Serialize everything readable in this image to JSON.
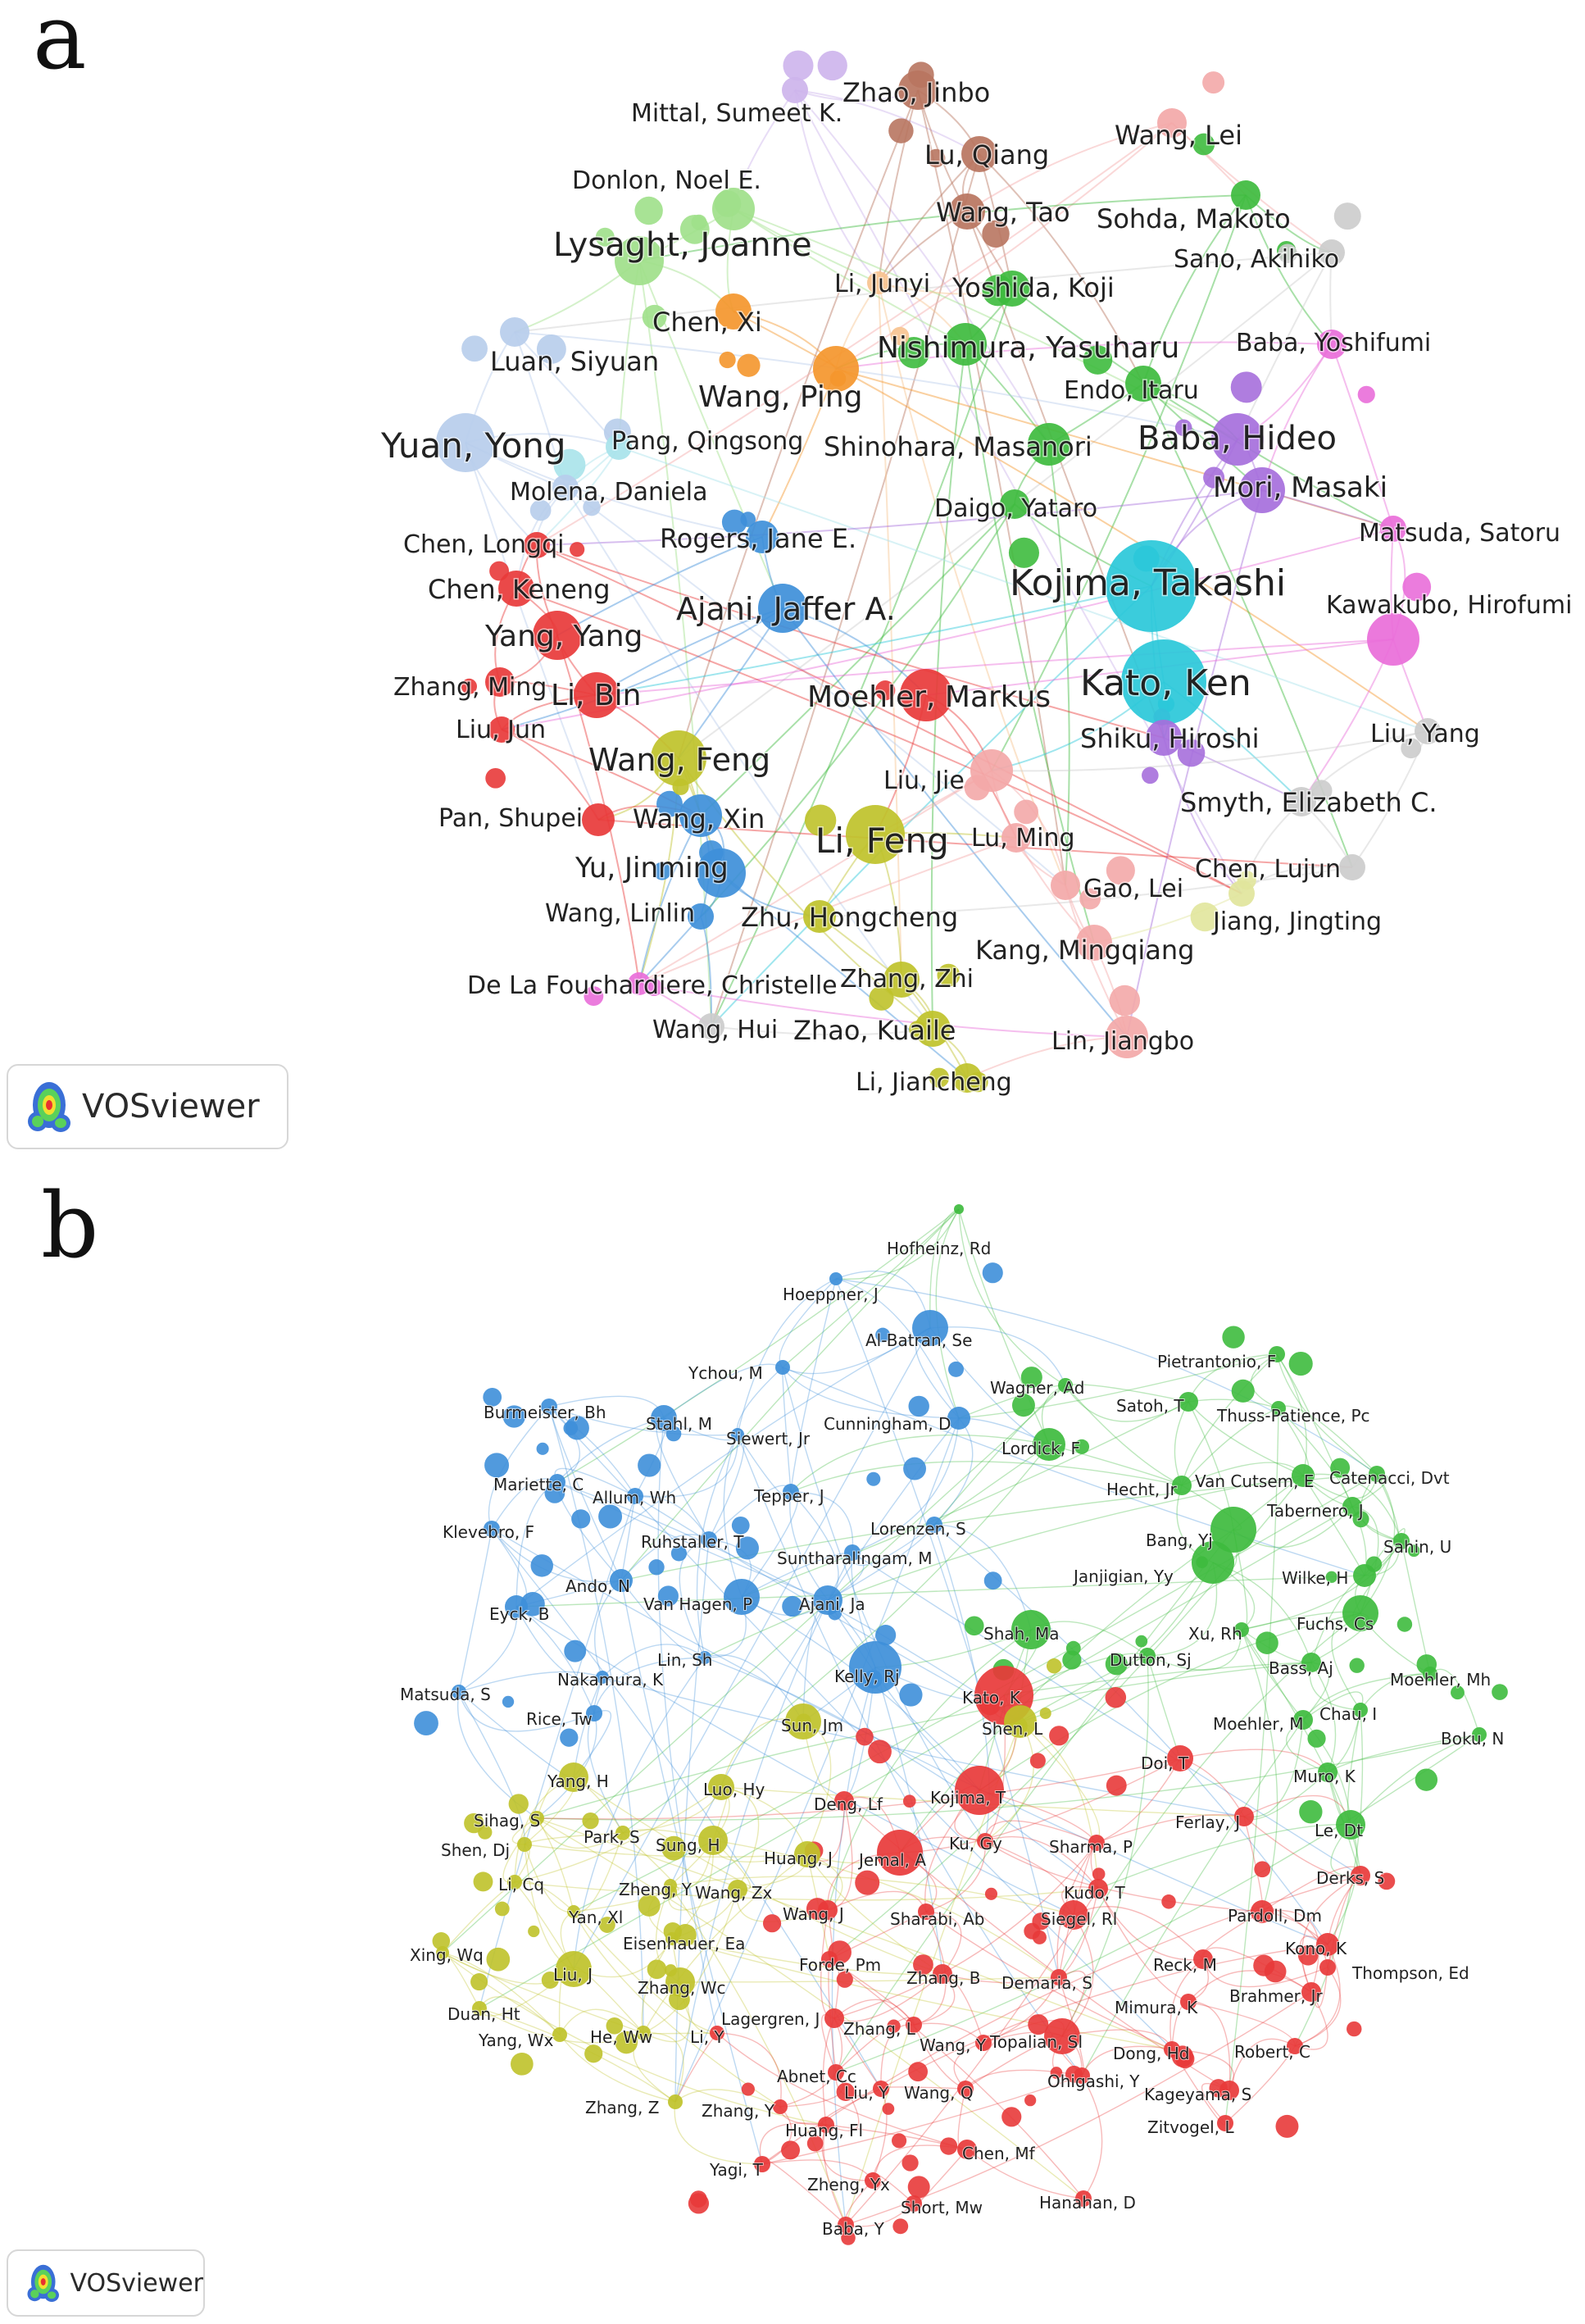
{
  "panel_a": {
    "letter": "a",
    "logo": "VOSviewer",
    "clusters": {
      "red": "#e83a3a",
      "green": "#3ebb3e",
      "blue": "#3e8fd9",
      "yellow": "#bfc22a",
      "purple": "#a66fdc",
      "cyan": "#2ac8d9",
      "orange": "#f4962c",
      "brown": "#b87560",
      "pink": "#e96ed9",
      "lightgreen": "#9fe08a",
      "lightblue": "#b7cdeb",
      "salmon": "#f3a8a8",
      "lavender": "#cdb4ec",
      "grey": "#cccccc",
      "palecyan": "#a8e3ea",
      "lightorange": "#f7c38f",
      "paleyellow": "#e1e59c"
    },
    "labels": [
      "Mittal, Sumeet K.",
      "Zhao, Jinbo",
      "Lu, Qiang",
      "Wang, Lei",
      "Donlon, Noel E.",
      "Wang, Tao",
      "Sohda, Makoto",
      "Lysaght, Joanne",
      "Sano, Akihiko",
      "Li, Junyi",
      "Yoshida, Koji",
      "Chen, Xi",
      "Nishimura, Yasuharu",
      "Baba, Yoshifumi",
      "Luan, Siyuan",
      "Endo, Itaru",
      "Wang, Ping",
      "Yuan, Yong",
      "Pang, Qingsong",
      "Shinohara, Masanori",
      "Baba, Hideo",
      "Mori, Masaki",
      "Molena, Daniela",
      "Daigo, Yataro",
      "Matsuda, Satoru",
      "Chen, Longqi",
      "Rogers, Jane E.",
      "Kojima, Takashi",
      "Chen, Keneng",
      "Kawakubo, Hirofumi",
      "Ajani, Jaffer A.",
      "Yang, Yang",
      "Kato, Ken",
      "Zhang, Ming",
      "Li, Bin",
      "Moehler, Markus",
      "Liu, Jun",
      "Shiku, Hiroshi",
      "Liu, Yang",
      "Wang, Feng",
      "Liu, Jie",
      "Smyth, Elizabeth C.",
      "Pan, Shupei",
      "Wang, Xin",
      "Li, Feng",
      "Lu, Ming",
      "Yu, Jinming",
      "Chen, Lujun",
      "Gao, Lei",
      "Wang, Linlin",
      "Zhu, Hongcheng",
      "Jiang, Jingting",
      "Kang, Mingqiang",
      "De La Fouchardiere, Christelle",
      "Zhang, Zhi",
      "Wang, Hui",
      "Zhao, Kuaile",
      "Lin, Jiangbo",
      "Li, Jiancheng"
    ]
  },
  "panel_b": {
    "letter": "b",
    "logo": "VOSviewer",
    "clusters": {
      "red": "#e83a3a",
      "green": "#3ebb3e",
      "blue": "#3e8fd9",
      "yellow": "#bfc22a"
    },
    "labels": [
      "Hofheinz, Rd",
      "Hoeppner, J",
      "Al-Batran, Se",
      "Ychou, M",
      "Pietrantonio, F",
      "Wagner, Ad",
      "Burmeister, Bh",
      "Stahl, M",
      "Cunningham, D",
      "Satoh, T",
      "Thuss-Patience, Pc",
      "Siewert, Jr",
      "Lordick, F",
      "Mariette, C",
      "Hecht, Jr",
      "Van Cutsem, E",
      "Catenacci, Dvt",
      "Allum, Wh",
      "Tepper, J",
      "Tabernero, J",
      "Klevebro, F",
      "Lorenzen, S",
      "Ruhstaller, T",
      "Suntharalingam, M",
      "Bang, Yj",
      "Sahin, U",
      "Wilke, H",
      "Ando, N",
      "Janjigian, Yy",
      "Eyck, B",
      "Van Hagen, P",
      "Ajani, Ja",
      "Xu, Rh",
      "Fuchs, Cs",
      "Shah, Ma",
      "Lin, Sh",
      "Dutton, Sj",
      "Bass, Aj",
      "Nakamura, K",
      "Kelly, Rj",
      "Moehler, Mh",
      "Matsuda, S",
      "Kato, K",
      "Rice, Tw",
      "Chau, I",
      "Moehler, M",
      "Sun, Jm",
      "Shen, L",
      "Boku, N",
      "Doi, T",
      "Muro, K",
      "Yang, H",
      "Luo, Hy",
      "Kojima, T",
      "Deng, Lf",
      "Sihag, S",
      "Ferlay, J",
      "Le, Dt",
      "Park, S",
      "Sung, H",
      "Ku, Gy",
      "Shen, Dj",
      "Sharma, P",
      "Huang, J",
      "Jemal, A",
      "Li, Cq",
      "Zheng, Y",
      "Wang, Zx",
      "Kudo, T",
      "Derks, S",
      "Yan, Xl",
      "Siegel, Rl",
      "Sharabi, Ab",
      "Wang, J",
      "Pardoll, Dm",
      "Eisenhauer, Ea",
      "Kono, K",
      "Xing, Wq",
      "Forde, Pm",
      "Reck, M",
      "Thompson, Ed",
      "Liu, J",
      "Zhang, B",
      "Zhang, Wc",
      "Demaria, S",
      "Brahmer, Jr",
      "Duan, Ht",
      "Lagergren, J",
      "Mimura, K",
      "Zhang, L",
      "Yang, Wx",
      "He, Ww",
      "Li, Y",
      "Wang, Y",
      "Topalian, Sl",
      "Dong, Hd",
      "Robert, C",
      "Abnet, Cc",
      "Ohigashi, Y",
      "Liu, Y",
      "Wang, Q",
      "Kageyama, S",
      "Zhang, Z",
      "Zhang, Y",
      "Zitvogel, L",
      "Huang, Fl",
      "Chen, Mf",
      "Yagi, T",
      "Zheng, Yx",
      "Short, Mw",
      "Hanahan, D",
      "Baba, Y"
    ]
  }
}
